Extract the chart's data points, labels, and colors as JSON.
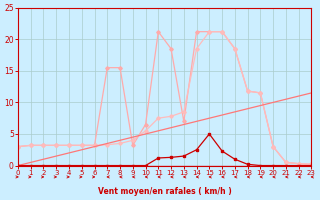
{
  "x": [
    0,
    1,
    2,
    3,
    4,
    5,
    6,
    7,
    8,
    9,
    10,
    11,
    12,
    13,
    14,
    15,
    16,
    17,
    18,
    19,
    20,
    21,
    22,
    23
  ],
  "line_rafales": [
    3.0,
    3.2,
    3.2,
    3.2,
    3.2,
    3.2,
    3.2,
    15.5,
    15.5,
    3.2,
    6.5,
    21.2,
    18.5,
    7.0,
    21.2,
    21.2,
    21.2,
    18.5,
    11.8,
    11.5,
    3.0,
    0.5,
    0.3,
    0.2
  ],
  "line_moyen": [
    3.0,
    3.2,
    3.2,
    3.2,
    3.2,
    3.2,
    3.2,
    3.3,
    3.5,
    4.0,
    5.5,
    7.5,
    7.8,
    8.5,
    18.5,
    21.2,
    21.2,
    18.5,
    11.8,
    11.5,
    3.0,
    0.5,
    0.3,
    0.2
  ],
  "line_count": [
    0.0,
    0.0,
    0.0,
    0.0,
    0.0,
    0.0,
    0.0,
    0.0,
    0.0,
    0.0,
    0.0,
    1.2,
    1.3,
    1.5,
    2.5,
    5.0,
    2.3,
    1.0,
    0.2,
    0.0,
    0.0,
    0.0,
    0.0,
    0.0
  ],
  "line_diag": [
    0.0,
    0.5,
    1.0,
    1.5,
    2.0,
    2.5,
    3.0,
    3.5,
    4.0,
    4.5,
    5.0,
    5.5,
    6.0,
    6.5,
    7.0,
    7.5,
    8.0,
    8.5,
    9.0,
    9.5,
    10.0,
    10.5,
    11.0,
    11.5
  ],
  "arrow_dirs": [
    "right",
    "right",
    "right",
    "right",
    "right",
    "right",
    "right",
    "left",
    "left",
    "left",
    "left",
    "left",
    "left",
    "left",
    "left",
    "left",
    "left",
    "left",
    "left",
    "left",
    "left",
    "left",
    "left",
    "left"
  ],
  "bg_color": "#cceeff",
  "grid_color": "#aacccc",
  "color_rafales": "#ffaaaa",
  "color_moyen": "#ffbbbb",
  "color_count": "#cc0000",
  "color_diag": "#ff7777",
  "color_arrow": "#cc0000",
  "axis_color": "#cc0000",
  "xlabel": "Vent moyen/en rafales ( km/h )",
  "ylim": [
    0,
    25
  ],
  "xlim": [
    0,
    23
  ],
  "yticks": [
    0,
    5,
    10,
    15,
    20,
    25
  ],
  "xticks": [
    0,
    1,
    2,
    3,
    4,
    5,
    6,
    7,
    8,
    9,
    10,
    11,
    12,
    13,
    14,
    15,
    16,
    17,
    18,
    19,
    20,
    21,
    22,
    23
  ]
}
